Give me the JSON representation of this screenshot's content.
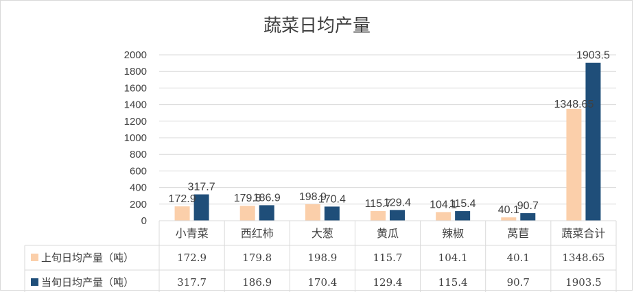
{
  "chart_data": {
    "type": "bar",
    "title": "蔬菜日均产量",
    "categories": [
      "小青菜",
      "西红柿",
      "大葱",
      "黄瓜",
      "辣椒",
      "莴苣",
      "蔬菜合计"
    ],
    "series": [
      {
        "name": "上旬日均产量（吨）",
        "values": [
          172.9,
          179.8,
          198.9,
          115.7,
          104.1,
          40.1,
          1348.65
        ],
        "labels": [
          "172.9",
          "179.8",
          "198.9",
          "115.7",
          "104.1",
          "40.1",
          "1348.65"
        ],
        "color": "#FBCFAA"
      },
      {
        "name": "当旬日均产量（吨）",
        "values": [
          317.7,
          186.9,
          170.4,
          129.4,
          115.4,
          90.7,
          1903.5
        ],
        "labels": [
          "317.7",
          "186.9",
          "170.4",
          "129.4",
          "115.4",
          "90.7",
          "1903.5"
        ],
        "color": "#1F4E79"
      }
    ],
    "yticks": [
      "0",
      "200",
      "400",
      "600",
      "800",
      "1000",
      "1200",
      "1400",
      "1600",
      "1800",
      "2000"
    ],
    "ylim": [
      0,
      2000
    ],
    "grid": true,
    "legend": "data-table",
    "gridColor": "#d9d9d9"
  }
}
